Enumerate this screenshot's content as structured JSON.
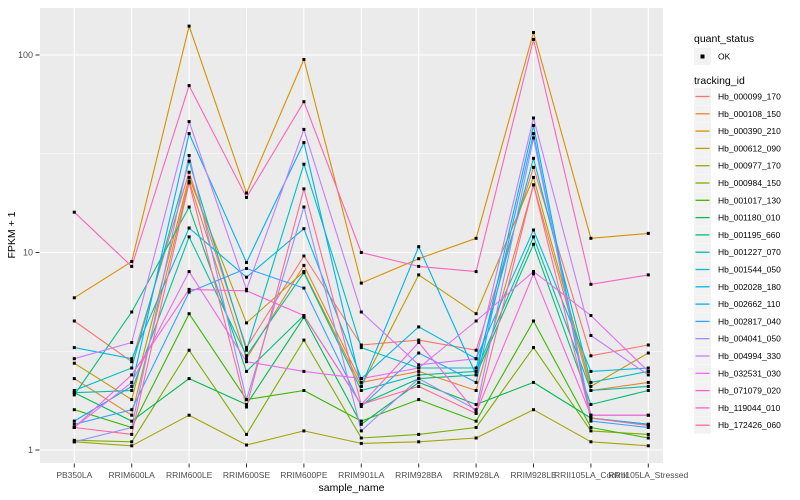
{
  "chart_data": {
    "type": "line",
    "title": "",
    "xlabel": "sample_name",
    "ylabel": "FPKM + 1",
    "y_scale": "log10",
    "y_ticks": [
      1,
      10,
      100
    ],
    "y_minor": [
      3.162,
      31.62
    ],
    "ylim": [
      0.86,
      173
    ],
    "grid": "on",
    "legend_position": "right",
    "categories": [
      "PB350LA",
      "RRIM600LA",
      "RRIM600LE",
      "RRIM600SE",
      "RRIM600PE",
      "RRIM901LA",
      "RRIM928BA",
      "RRIM928LA",
      "RRIM928LE",
      "RRII105LA_Control",
      "RRII105LA_Stressed"
    ],
    "series": [
      {
        "name": "Hb_000099_170",
        "color": "#F8766D",
        "values": [
          4.5,
          2.8,
          25.5,
          3.3,
          9.6,
          3.4,
          3.6,
          3.2,
          27,
          3.0,
          3.4
        ]
      },
      {
        "name": "Hb_000108_150",
        "color": "#EA8331",
        "values": [
          2.3,
          1.5,
          23,
          2.9,
          8.6,
          2.2,
          2.5,
          2.0,
          22,
          2.0,
          2.2
        ]
      },
      {
        "name": "Hb_000390_210",
        "color": "#D89000",
        "values": [
          5.9,
          9.0,
          140,
          20,
          95,
          7.0,
          9.3,
          11.8,
          130,
          11.8,
          12.5
        ]
      },
      {
        "name": "Hb_000612_090",
        "color": "#C09B00",
        "values": [
          2.75,
          1.8,
          24,
          4.4,
          8.0,
          2.1,
          7.7,
          4.9,
          24,
          2.1,
          3.1
        ]
      },
      {
        "name": "Hb_000977_170",
        "color": "#A3A500",
        "values": [
          1.1,
          1.05,
          1.5,
          1.06,
          1.25,
          1.08,
          1.1,
          1.15,
          1.6,
          1.1,
          1.05
        ]
      },
      {
        "name": "Hb_000984_150",
        "color": "#7CAE00",
        "values": [
          1.12,
          1.1,
          3.2,
          1.2,
          3.6,
          1.15,
          1.2,
          1.3,
          3.3,
          1.25,
          1.2
        ]
      },
      {
        "name": "Hb_001017_130",
        "color": "#39B600",
        "values": [
          1.6,
          1.3,
          4.9,
          1.8,
          2.0,
          1.4,
          1.8,
          1.4,
          4.5,
          1.3,
          1.15
        ]
      },
      {
        "name": "Hb_001180_010",
        "color": "#00BB4E",
        "values": [
          1.95,
          1.4,
          2.3,
          1.7,
          4.7,
          1.35,
          2.2,
          1.7,
          2.2,
          1.45,
          1.35
        ]
      },
      {
        "name": "Hb_001195_660",
        "color": "#00BF7D",
        "values": [
          1.9,
          5.0,
          17,
          2.5,
          4.8,
          1.7,
          2.3,
          2.4,
          11,
          1.7,
          2.0
        ]
      },
      {
        "name": "Hb_001227_070",
        "color": "#00C1A3",
        "values": [
          1.95,
          2.0,
          12,
          3.0,
          7.9,
          2.0,
          2.4,
          2.5,
          12,
          2.0,
          2.1
        ]
      },
      {
        "name": "Hb_001544_050",
        "color": "#00BFC4",
        "values": [
          2.0,
          2.6,
          29,
          3.2,
          28,
          3.3,
          2.6,
          2.6,
          30,
          2.2,
          2.5
        ]
      },
      {
        "name": "Hb_002028_180",
        "color": "#00BAE0",
        "values": [
          3.3,
          2.9,
          13.3,
          7.5,
          13.2,
          2.3,
          4.2,
          2.9,
          13,
          2.5,
          2.6
        ]
      },
      {
        "name": "Hb_002662_110",
        "color": "#00B0F6",
        "values": [
          1.4,
          2.1,
          40,
          8.9,
          36,
          2.1,
          10.7,
          2.4,
          44,
          1.45,
          1.35
        ]
      },
      {
        "name": "Hb_002817_040",
        "color": "#35A2FF",
        "values": [
          1.35,
          1.6,
          6.3,
          8.3,
          6.6,
          1.66,
          3.1,
          2.2,
          40,
          1.4,
          1.3
        ]
      },
      {
        "name": "Hb_004041_050",
        "color": "#9590FF",
        "values": [
          1.1,
          1.3,
          31,
          1.8,
          17,
          1.25,
          2.3,
          1.6,
          38,
          1.5,
          1.5
        ]
      },
      {
        "name": "Hb_004994_330",
        "color": "#C77CFF",
        "values": [
          2.9,
          3.5,
          46,
          6.5,
          42,
          5.0,
          2.7,
          2.9,
          48,
          3.8,
          2.4
        ]
      },
      {
        "name": "Hb_032531_030",
        "color": "#E76BF3",
        "values": [
          1.3,
          2.2,
          8.0,
          2.8,
          2.5,
          2.3,
          2.6,
          4.5,
          8.0,
          4.8,
          2.5
        ]
      },
      {
        "name": "Hb_071079_020",
        "color": "#FA62DB",
        "values": [
          1.3,
          2.4,
          6.5,
          6.4,
          4.8,
          1.7,
          3.5,
          1.55,
          7.8,
          1.5,
          1.5
        ]
      },
      {
        "name": "Hb_119044_010",
        "color": "#FF62BC",
        "values": [
          16,
          8.5,
          70,
          19,
          58,
          10,
          8.5,
          8.0,
          120,
          6.9,
          7.7
        ]
      },
      {
        "name": "Hb_172426_060",
        "color": "#FF6A98",
        "values": [
          1.3,
          1.2,
          22.5,
          1.65,
          21,
          1.7,
          2.1,
          1.53,
          22,
          1.45,
          1.33
        ]
      }
    ],
    "legend": {
      "quant_status": {
        "title": "quant_status",
        "items": [
          {
            "label": "OK",
            "marker": "point",
            "color": "#000000"
          }
        ]
      },
      "tracking_id": {
        "title": "tracking_id"
      }
    }
  },
  "style": {
    "panel_bg": "#EBEBEB",
    "grid_color": "#FFFFFF",
    "tick_label_color": "#4D4D4D",
    "axis_title_color": "#000000",
    "legend_key_bg": "#F2F2F2",
    "point_color": "#000000"
  }
}
